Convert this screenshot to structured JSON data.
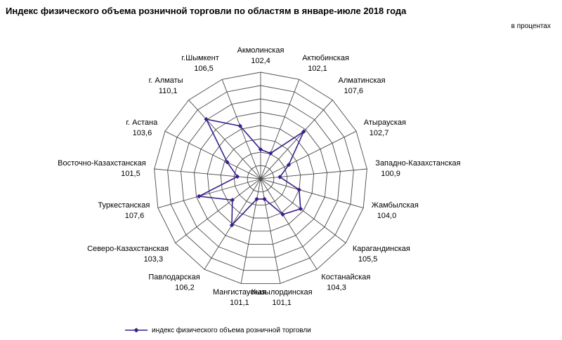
{
  "chart_data": {
    "type": "radar",
    "title": "Индекс физического объема розничной торговли по областям в январе-июле 2018 года",
    "units": "в процентах",
    "categories": [
      "Акмолинская",
      "Актюбинская",
      "Алматинская",
      "Атырауская",
      "Западно-Казахстанская",
      "Жамбылская",
      "Карагандинская",
      "Костанайская",
      "Кызылординская",
      "Мангистауская",
      "Павлодарская",
      "Северо-Казахстанская",
      "Туркестанская",
      "Восточно-Казахстанская",
      "г. Астана",
      "г. Алматы",
      "г.Шымкент"
    ],
    "value_labels": [
      "102,4",
      "102,1",
      "107,6",
      "102,7",
      "100,9",
      "104,0",
      "105,5",
      "104,3",
      "101,1",
      "101,1",
      "106,2",
      "103,3",
      "107,6",
      "101,5",
      "103,6",
      "110,1",
      "106,5"
    ],
    "series": [
      {
        "name": "индекс физического объема розничной торговли",
        "color": "#3a1e8c",
        "values": [
          102.4,
          102.1,
          107.6,
          102.7,
          100.9,
          104.0,
          105.5,
          104.3,
          101.1,
          101.1,
          106.2,
          103.3,
          107.6,
          101.5,
          103.6,
          110.1,
          106.5
        ]
      }
    ],
    "rlim": [
      98,
      114
    ],
    "grid_step": 2,
    "grid": true,
    "legend": "bottom"
  }
}
